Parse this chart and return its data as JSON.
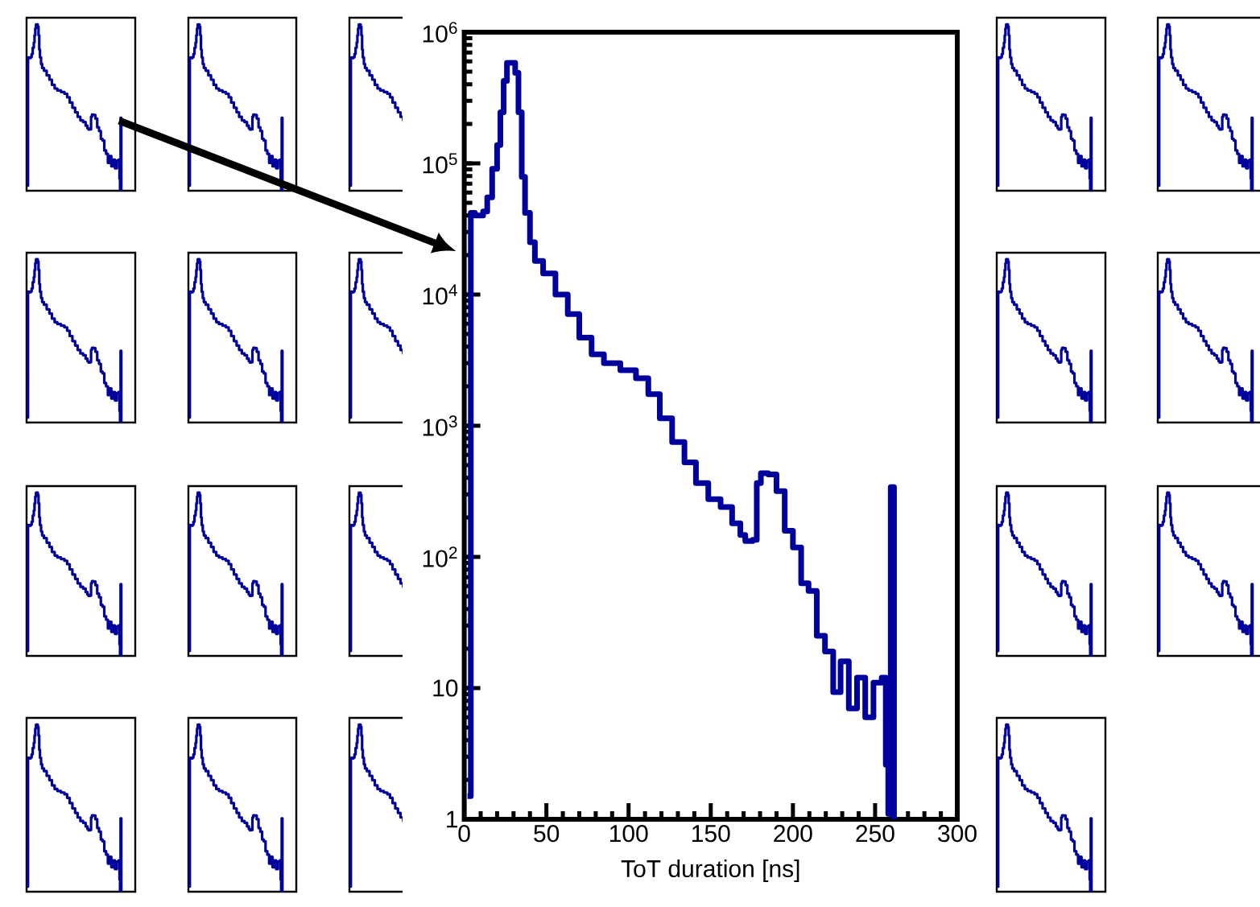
{
  "chart_data": {
    "type": "step",
    "xlabel": "ToT duration  [ns]",
    "color": "#00009c",
    "log": "y",
    "line_style": "solid",
    "marker": "none",
    "x": [
      2,
      4,
      6.5,
      11.5,
      14,
      17,
      20,
      22,
      24,
      26,
      29,
      31,
      33,
      35,
      37,
      40,
      43,
      48,
      55.5,
      63,
      70,
      77.5,
      85,
      95,
      104.5,
      112,
      119,
      126.5,
      134,
      141,
      148.5,
      156,
      163,
      168,
      171,
      175.5,
      178,
      180.5,
      185,
      190,
      195,
      200,
      205,
      209.5,
      214.5,
      219.5,
      224.5,
      229,
      234,
      239,
      244,
      249,
      254,
      256.5,
      258,
      259.5,
      261.5
    ],
    "values": [
      1.5,
      42000,
      40000,
      43000,
      55000,
      91000,
      138000,
      245000,
      426000,
      585000,
      585000,
      490000,
      245000,
      79000,
      42000,
      25000,
      18000,
      14500,
      10000,
      7100,
      4700,
      3500,
      3000,
      2650,
      2300,
      1740,
      1140,
      750,
      525,
      365,
      275,
      240,
      180,
      147,
      132,
      135,
      365,
      435,
      425,
      317,
      158,
      118,
      63,
      55,
      25,
      19,
      9.3,
      16,
      7,
      12,
      6,
      11,
      12,
      2.6,
      1.1,
      340,
      1
    ],
    "xlim": [
      0,
      300
    ],
    "ylim": [
      1,
      1000000
    ],
    "xticks": [
      0,
      50,
      100,
      150,
      200,
      250,
      300
    ],
    "yticks": [
      {
        "value": 1,
        "label": "1"
      },
      {
        "value": 10,
        "label": "10"
      },
      {
        "value": 100,
        "label": "10$^{2}$"
      },
      {
        "value": 1000,
        "label": "10$^{3}$"
      },
      {
        "value": 10000,
        "label": "10$^{4}$"
      },
      {
        "value": 100000,
        "label": "10$^{5}$"
      },
      {
        "value": 1000000,
        "label": "10$^{6}$"
      }
    ]
  }
}
